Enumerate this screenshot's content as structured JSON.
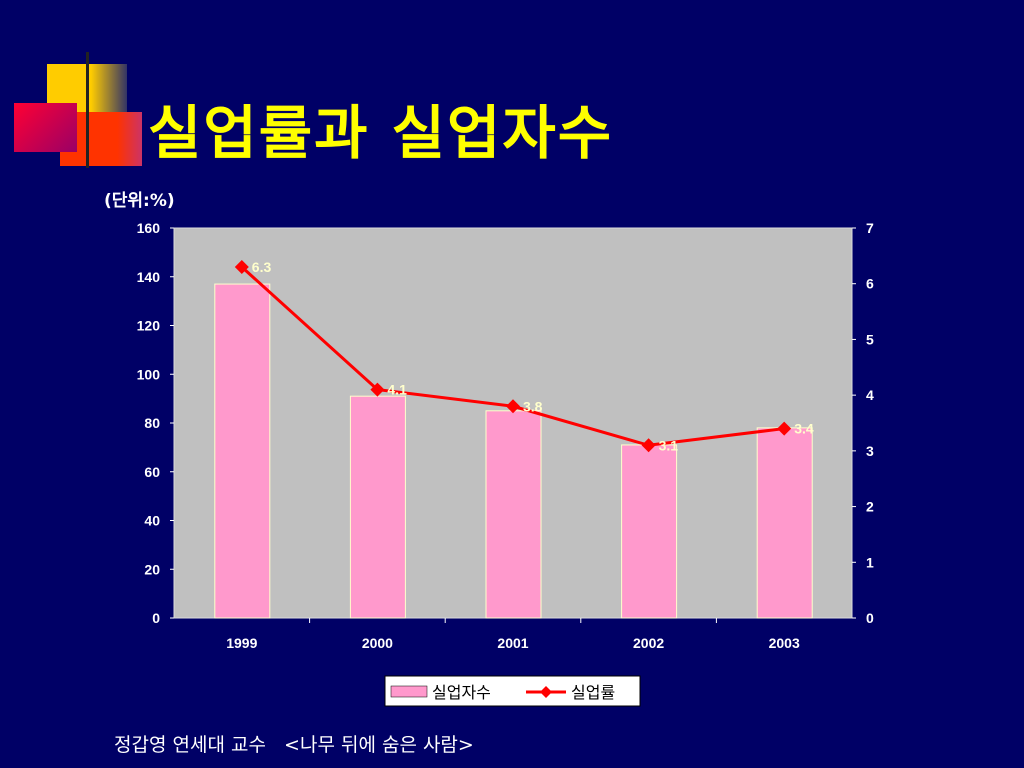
{
  "title": "실업률과 실업자수",
  "unit_label": "(단위:%)",
  "footer": "정갑영 연세대 교수   <나무 뒤에 숨은 사람>",
  "colors": {
    "background": "#000066",
    "plot": "#c0c0c0",
    "bar": "#ff99cc",
    "line": "#ff0000",
    "title": "#ffff00"
  },
  "chart_data": {
    "type": "bar+line",
    "categories": [
      "1999",
      "2000",
      "2001",
      "2002",
      "2003"
    ],
    "series": [
      {
        "name": "실업자수",
        "type": "bar",
        "axis": "left",
        "values": [
          137,
          91,
          85,
          71,
          78
        ]
      },
      {
        "name": "실업률",
        "type": "line",
        "axis": "right",
        "values": [
          6.3,
          4.1,
          3.8,
          3.1,
          3.4
        ],
        "labels": [
          "6.3",
          "4.1",
          "3.8",
          "3.1",
          "3.4"
        ]
      }
    ],
    "y_left": {
      "min": 0,
      "max": 160,
      "ticks": [
        "0",
        "20",
        "40",
        "60",
        "80",
        "100",
        "120",
        "140",
        "160"
      ]
    },
    "y_right": {
      "min": 0,
      "max": 7,
      "ticks": [
        "0",
        "1",
        "2",
        "3",
        "4",
        "5",
        "6",
        "7"
      ]
    },
    "legend_position": "bottom",
    "grid": false
  }
}
